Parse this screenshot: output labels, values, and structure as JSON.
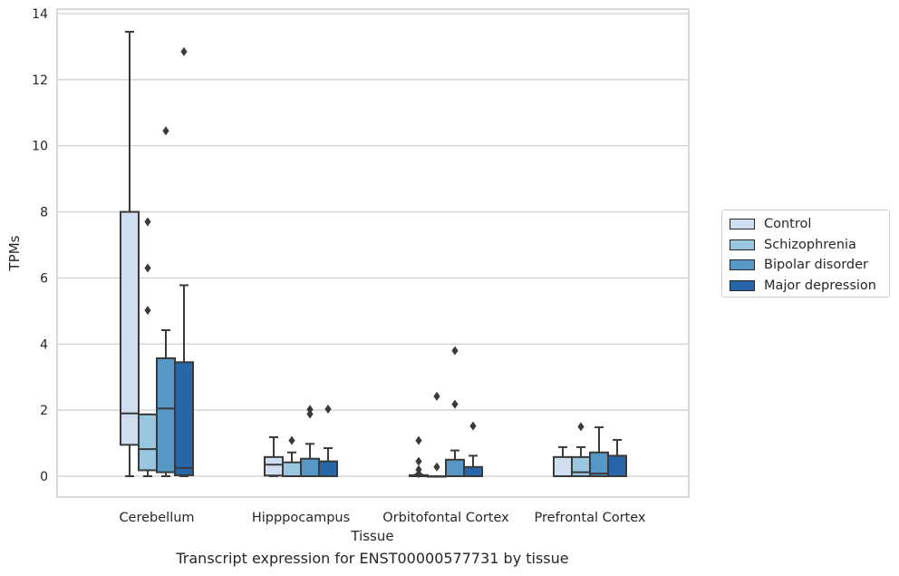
{
  "caption": "Transcript expression for ENST00000577731 by tissue",
  "colors": {
    "Control": "#cfdff0",
    "Schizophrenia": "#9ac6df",
    "Bipolar disorder": "#5597c5",
    "Major depression": "#2766a8",
    "line": "#3a3a3a",
    "grid": "#cccccc"
  },
  "chart_data": {
    "type": "box",
    "xlabel": "Tissue",
    "ylabel": "TPMs",
    "ylim": [
      -0.6,
      14.15
    ],
    "yticks": [
      0,
      2,
      4,
      6,
      8,
      10,
      12,
      14
    ],
    "grid": "horizontal",
    "legend_position": "right",
    "categories": [
      "Cerebellum",
      "Hipppocampus",
      "Orbitofontal Cortex",
      "Prefrontal Cortex"
    ],
    "series": [
      {
        "name": "Control",
        "boxes": [
          {
            "whisker_low": 0,
            "q1": 0.95,
            "median": 1.9,
            "q3": 8.0,
            "whisker_high": 13.45,
            "outliers": []
          },
          {
            "whisker_low": 0,
            "q1": 0.02,
            "median": 0.35,
            "q3": 0.58,
            "whisker_high": 1.18,
            "outliers": []
          },
          {
            "whisker_low": 0,
            "q1": 0,
            "median": 0,
            "q3": 0.03,
            "whisker_high": 0.05,
            "outliers": [
              0.08,
              0.2,
              0.45,
              1.08
            ]
          },
          {
            "whisker_low": 0,
            "q1": 0,
            "median": 0,
            "q3": 0.58,
            "whisker_high": 0.88,
            "outliers": []
          }
        ]
      },
      {
        "name": "Schizophrenia",
        "boxes": [
          {
            "whisker_low": 0,
            "q1": 0.18,
            "median": 0.82,
            "q3": 1.87,
            "whisker_high": 1.87,
            "outliers": [
              5.02,
              6.3,
              7.7
            ]
          },
          {
            "whisker_low": 0,
            "q1": 0,
            "median": 0,
            "q3": 0.42,
            "whisker_high": 0.72,
            "outliers": [
              1.08
            ]
          },
          {
            "whisker_low": 0,
            "q1": 0,
            "median": 0,
            "q3": 0,
            "whisker_high": 0,
            "outliers": [
              0.28,
              2.42
            ]
          },
          {
            "whisker_low": 0,
            "q1": 0,
            "median": 0.12,
            "q3": 0.58,
            "whisker_high": 0.88,
            "outliers": [
              1.5
            ]
          }
        ]
      },
      {
        "name": "Bipolar disorder",
        "boxes": [
          {
            "whisker_low": 0,
            "q1": 0.12,
            "median": 2.05,
            "q3": 3.57,
            "whisker_high": 4.42,
            "outliers": [
              10.45
            ]
          },
          {
            "whisker_low": 0,
            "q1": 0,
            "median": 0,
            "q3": 0.53,
            "whisker_high": 0.98,
            "outliers": [
              1.88,
              2.02
            ]
          },
          {
            "whisker_low": 0,
            "q1": 0,
            "median": 0,
            "q3": 0.5,
            "whisker_high": 0.78,
            "outliers": [
              2.18,
              3.8
            ]
          },
          {
            "whisker_low": 0,
            "q1": 0,
            "median": 0.08,
            "q3": 0.72,
            "whisker_high": 1.48,
            "outliers": []
          }
        ]
      },
      {
        "name": "Major depression",
        "boxes": [
          {
            "whisker_low": 0,
            "q1": 0.03,
            "median": 0.25,
            "q3": 3.45,
            "whisker_high": 5.78,
            "outliers": [
              12.85
            ]
          },
          {
            "whisker_low": 0,
            "q1": 0,
            "median": 0,
            "q3": 0.45,
            "whisker_high": 0.85,
            "outliers": [
              2.03
            ]
          },
          {
            "whisker_low": 0,
            "q1": 0,
            "median": 0,
            "q3": 0.28,
            "whisker_high": 0.62,
            "outliers": [
              1.52
            ]
          },
          {
            "whisker_low": 0,
            "q1": 0,
            "median": 0,
            "q3": 0.62,
            "whisker_high": 1.1,
            "outliers": []
          }
        ]
      }
    ]
  }
}
